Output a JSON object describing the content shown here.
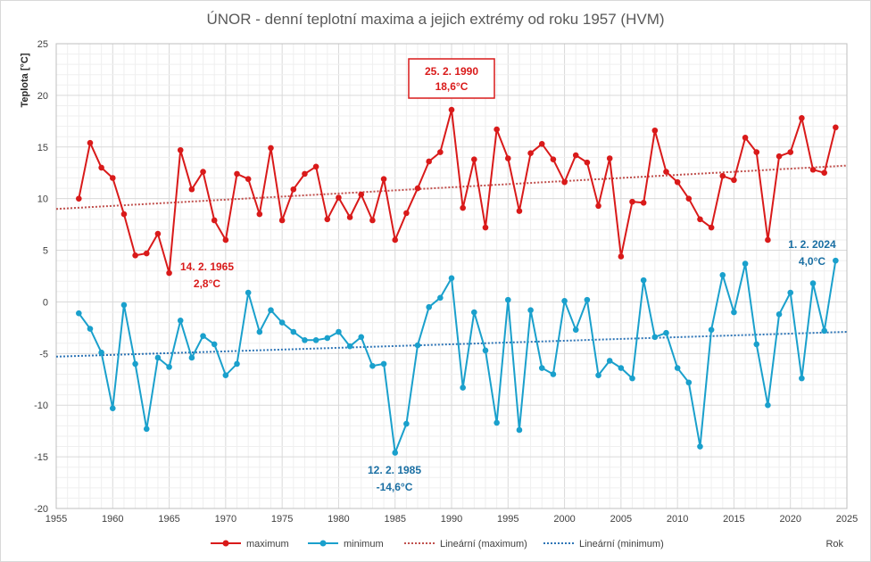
{
  "chart_data": {
    "type": "line",
    "title": "ÚNOR - denní teplotní maxima a jejich extrémy od roku 1957 (HVM)",
    "ylabel": "Teplota  [°C]",
    "xlabel": "Rok",
    "xlim": [
      1955,
      2025
    ],
    "ylim": [
      -20,
      25
    ],
    "xticks": [
      1955,
      1960,
      1965,
      1970,
      1975,
      1980,
      1985,
      1990,
      1995,
      2000,
      2005,
      2010,
      2015,
      2020,
      2025
    ],
    "yticks": [
      -20,
      -15,
      -10,
      -5,
      0,
      5,
      10,
      15,
      20,
      25
    ],
    "grid": true,
    "legend_position": "bottom",
    "x": [
      1957,
      1958,
      1959,
      1960,
      1961,
      1962,
      1963,
      1964,
      1965,
      1966,
      1967,
      1968,
      1969,
      1970,
      1971,
      1972,
      1973,
      1974,
      1975,
      1976,
      1977,
      1978,
      1979,
      1980,
      1981,
      1982,
      1983,
      1984,
      1985,
      1986,
      1987,
      1988,
      1989,
      1990,
      1991,
      1992,
      1993,
      1994,
      1995,
      1996,
      1997,
      1998,
      1999,
      2000,
      2001,
      2002,
      2003,
      2004,
      2005,
      2006,
      2007,
      2008,
      2009,
      2010,
      2011,
      2012,
      2013,
      2014,
      2015,
      2016,
      2017,
      2018,
      2019,
      2020,
      2021,
      2022,
      2023,
      2024
    ],
    "series": [
      {
        "name": "maximum",
        "color": "#d91a1a",
        "values": [
          10.0,
          15.4,
          13.0,
          12.0,
          8.5,
          4.5,
          4.7,
          6.6,
          2.8,
          14.7,
          10.9,
          12.6,
          7.9,
          6.0,
          12.4,
          11.9,
          8.5,
          14.9,
          7.9,
          10.9,
          12.4,
          13.1,
          8.0,
          10.1,
          8.2,
          10.4,
          7.9,
          11.9,
          6.0,
          8.6,
          11.0,
          13.6,
          14.5,
          18.6,
          9.1,
          13.8,
          7.2,
          16.7,
          13.9,
          8.8,
          14.4,
          15.3,
          13.8,
          11.6,
          14.2,
          13.5,
          9.3,
          13.9,
          4.4,
          9.7,
          9.6,
          16.6,
          12.6,
          11.6,
          10.0,
          8.0,
          7.2,
          12.2,
          11.8,
          15.9,
          14.5,
          6.0,
          14.1,
          14.5,
          17.8,
          12.8,
          12.5,
          16.9
        ]
      },
      {
        "name": "minimum",
        "color": "#1aa0cc",
        "values": [
          -1.1,
          -2.6,
          -4.9,
          -10.3,
          -0.3,
          -6.0,
          -12.3,
          -5.4,
          -6.3,
          -1.8,
          -5.4,
          -3.3,
          -4.1,
          -7.1,
          -6.0,
          0.9,
          -2.9,
          -0.8,
          -2.0,
          -2.9,
          -3.7,
          -3.7,
          -3.5,
          -2.9,
          -4.3,
          -3.4,
          -6.2,
          -6.0,
          -14.6,
          -11.8,
          -4.2,
          -0.5,
          0.4,
          2.3,
          -8.3,
          -1.0,
          -4.7,
          -11.7,
          0.2,
          -12.4,
          -0.8,
          -6.4,
          -7.0,
          0.1,
          -2.7,
          0.2,
          -7.1,
          -5.7,
          -6.4,
          -7.4,
          2.1,
          -3.4,
          -3.0,
          -6.4,
          -7.8,
          -14.0,
          -2.7,
          2.6,
          -1.0,
          3.7,
          -4.1,
          -10.0,
          -1.2,
          0.9,
          -7.4,
          1.8,
          -2.8,
          4.0
        ]
      },
      {
        "name": "Lineární (maximum)",
        "type": "trend",
        "color": "#c0504d",
        "x": [
          1955,
          2025
        ],
        "values": [
          9.0,
          13.2
        ]
      },
      {
        "name": "Lineární (minimum)",
        "type": "trend",
        "color": "#2e75b6",
        "x": [
          1955,
          2025
        ],
        "values": [
          -5.3,
          -2.9
        ]
      }
    ],
    "annotations": [
      {
        "id": "ann-max",
        "line1": "25. 2. 1990",
        "line2": "18,6°C",
        "color": "#d91a1a",
        "boxed": true
      },
      {
        "id": "ann-min-max",
        "line1": "14. 2. 1965",
        "line2": "2,8°C",
        "color": "#d91a1a",
        "boxed": false
      },
      {
        "id": "ann-min",
        "line1": "12. 2. 1985",
        "line2": "-14,6°C",
        "color": "#1a6fa3",
        "boxed": false
      },
      {
        "id": "ann-max-min",
        "line1": "1. 2. 2024",
        "line2": "4,0°C",
        "color": "#1a6fa3",
        "boxed": false
      }
    ]
  }
}
